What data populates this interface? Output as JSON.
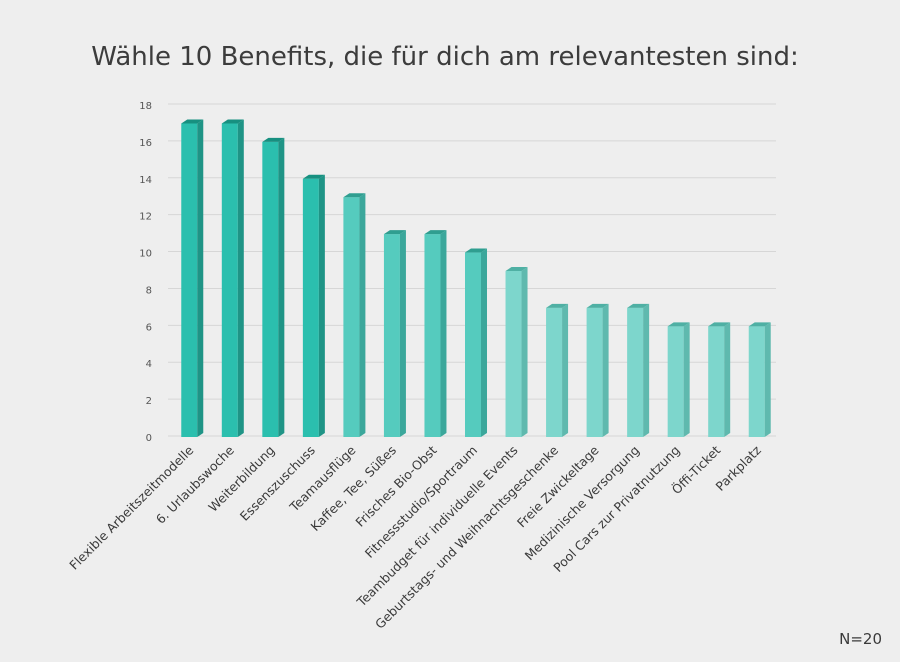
{
  "chart_data": {
    "type": "bar",
    "title": "Wähle 10 Benefits, die für dich am relevantesten sind:",
    "categories": [
      "Flexible Arbeitszeitmodelle",
      "6. Urlaubswoche",
      "Weiterbildung",
      "Essenszuschuss",
      "Teamausflüge",
      "Kaffee, Tee, Süßes",
      "Frisches Bio-Obst",
      "Fitnessstudio/Sportraum",
      "Teambudget für individuelle Events",
      "Geburtstags- und Weihnachtsgeschenke",
      "Freie Zwickeltage",
      "Medizinische Versorgung",
      "Pool Cars zur Privatnutzung",
      "Öffi-Ticket",
      "Parkplatz"
    ],
    "values": [
      17,
      17,
      16,
      14,
      13,
      11,
      11,
      10,
      9,
      7,
      7,
      7,
      6,
      6,
      6
    ],
    "ylim": [
      0,
      18
    ],
    "yticks": [
      0,
      2,
      4,
      6,
      8,
      10,
      12,
      14,
      16,
      18
    ],
    "grid": true,
    "colors": {
      "bar_dark_front": "#2bbfae",
      "bar_dark_side": "#1f9486",
      "bar_dark_top": "#179080",
      "bar_mid_front": "#55cbbe",
      "bar_mid_side": "#3ba79b",
      "bar_mid_top": "#2f9e90",
      "bar_light_front": "#7dd6cc",
      "bar_light_side": "#5fb9ae",
      "bar_light_top": "#4fb0a4",
      "grid": "#d6d6d6",
      "axis_text": "#555555"
    }
  },
  "note": "N=20"
}
